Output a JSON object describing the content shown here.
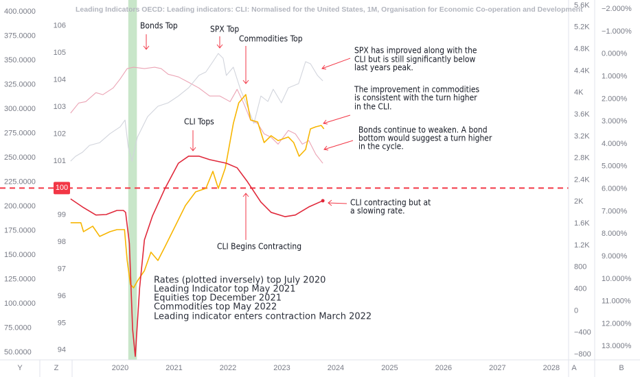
{
  "chart_data": {
    "type": "line",
    "title": "Leading Indicators OECD: Leading indicators: CLI: Normalised for the United States, 1M, Organisation for Economic Co-operation and Development",
    "xlim": [
      2017.77,
      2028.32
    ],
    "xticks": [
      2020,
      2021,
      2022,
      2023,
      2024,
      2025,
      2026,
      2027,
      2028
    ],
    "ylim": [
      42.3,
      412
    ],
    "yticks": [
      {
        "value": 400,
        "label": "400.0000"
      },
      {
        "value": 375,
        "label": "375.0000"
      },
      {
        "value": 350,
        "label": "350.0000"
      },
      {
        "value": 325,
        "label": "325.0000"
      },
      {
        "value": 300,
        "label": "300.0000"
      },
      {
        "value": 275,
        "label": "275.0000"
      },
      {
        "value": 250,
        "label": "250.0000"
      },
      {
        "value": 225,
        "label": "225.0000"
      },
      {
        "value": 200,
        "label": "200.0000"
      },
      {
        "value": 175,
        "label": "175.0000"
      },
      {
        "value": 150,
        "label": "150.0000"
      },
      {
        "value": 125,
        "label": "125.0000"
      },
      {
        "value": 100,
        "label": "100.0000"
      },
      {
        "value": 75,
        "label": "75.0000"
      },
      {
        "value": 50,
        "label": "50.0000"
      }
    ],
    "y3lim": [
      93.64,
      106.96
    ],
    "y3ticks": [
      106,
      105,
      104,
      103,
      102,
      101,
      99,
      98,
      97,
      96,
      95,
      94
    ],
    "y2lim": [
      -900,
      5700
    ],
    "y2ticks": [
      {
        "value": 5600,
        "label": "5.6K"
      },
      {
        "value": 5200,
        "label": "5.2K"
      },
      {
        "value": 4800,
        "label": "4.8K"
      },
      {
        "value": 4400,
        "label": "4.4K"
      },
      {
        "value": 4000,
        "label": "4K"
      },
      {
        "value": 3600,
        "label": "3.6K"
      },
      {
        "value": 3200,
        "label": "3.2K"
      },
      {
        "value": 2800,
        "label": "2.8K"
      },
      {
        "value": 2400,
        "label": "2.4K"
      },
      {
        "value": 2000,
        "label": "2K"
      },
      {
        "value": 1600,
        "label": "1.6K"
      },
      {
        "value": 1200,
        "label": "1.2K"
      },
      800,
      400,
      0,
      {
        "value": -400,
        "label": "−400"
      },
      {
        "value": -800,
        "label": "−800"
      }
    ],
    "y4lim": [
      -2.4,
      13.6
    ],
    "y4_inverted": true,
    "y4ticks": [
      {
        "value": -2,
        "label": "−2.000%"
      },
      {
        "value": -1,
        "label": "−1.000%"
      },
      {
        "value": 0,
        "label": "0.000%"
      },
      {
        "value": 1,
        "label": "1.000%"
      },
      {
        "value": 2,
        "label": "2.000%"
      },
      {
        "value": 3,
        "label": "3.000%"
      },
      {
        "value": 4,
        "label": "4.000%"
      },
      {
        "value": 5,
        "label": "5.000%"
      },
      {
        "value": 6,
        "label": "6.000%"
      },
      {
        "value": 7,
        "label": "7.000%"
      },
      {
        "value": 8,
        "label": "8.000%"
      },
      {
        "value": 9,
        "label": "9.000%"
      },
      {
        "value": 10,
        "label": "10.000%"
      },
      {
        "value": 11,
        "label": "11.000%"
      },
      {
        "value": 12,
        "label": "12.000%"
      },
      {
        "value": 13,
        "label": "13.000%"
      }
    ],
    "grid": false,
    "highlight": [
      2020.15,
      2020.31
    ],
    "highlight_color": "#c8e6c9",
    "reference_line": {
      "value": 100,
      "axis": "y3",
      "color": "#f23645"
    },
    "series": [
      {
        "axis": "y4",
        "color": "#eba3b4",
        "x": [
          2019.08,
          2019.23,
          2019.36,
          2019.55,
          2019.68,
          2019.87,
          2020.0,
          2020.13,
          2020.25,
          2020.45,
          2020.64,
          2020.76,
          2020.89,
          2021.08,
          2021.27,
          2021.46,
          2021.66,
          2021.85,
          2022.04,
          2022.17,
          2022.29,
          2022.42,
          2022.55,
          2022.67,
          2022.8,
          2022.93,
          2023.12,
          2023.25,
          2023.38,
          2023.5,
          2023.63,
          2023.76
        ],
        "values": [
          2.63,
          2.18,
          2.12,
          1.72,
          1.81,
          1.51,
          1.11,
          0.65,
          0.59,
          0.65,
          0.59,
          0.65,
          0.9,
          1.02,
          1.26,
          1.51,
          1.87,
          1.87,
          2.12,
          1.57,
          2.18,
          2.94,
          3.09,
          3.55,
          3.7,
          4.01,
          3.4,
          3.55,
          4.01,
          3.85,
          4.46,
          4.86
        ]
      },
      {
        "axis": "y2",
        "color": "#d1d4dc",
        "x": [
          2019.08,
          2019.17,
          2019.3,
          2019.43,
          2019.62,
          2019.81,
          2020.0,
          2020.09,
          2020.15,
          2020.22,
          2020.32,
          2020.51,
          2020.7,
          2020.89,
          2021.08,
          2021.27,
          2021.46,
          2021.59,
          2021.72,
          2021.82,
          2021.91,
          2021.97,
          2022.1,
          2022.23,
          2022.36,
          2022.48,
          2022.61,
          2022.74,
          2022.84,
          2022.99,
          2023.12,
          2023.31,
          2023.44,
          2023.53,
          2023.66,
          2023.76
        ],
        "values": [
          2744,
          2832,
          2908,
          3034,
          3084,
          3247,
          3373,
          3499,
          2996,
          2744,
          3185,
          3562,
          3751,
          3814,
          3939,
          4090,
          4317,
          4380,
          4568,
          4719,
          4631,
          4317,
          4468,
          4065,
          3751,
          3436,
          3939,
          3839,
          4065,
          3814,
          4090,
          4166,
          4568,
          4531,
          4317,
          4216
        ]
      },
      {
        "axis": "y",
        "color": "#f7b500",
        "x": [
          2019.08,
          2019.27,
          2019.32,
          2019.49,
          2019.62,
          2019.81,
          2019.94,
          2020.08,
          2020.13,
          2020.19,
          2020.25,
          2020.32,
          2020.45,
          2020.57,
          2020.7,
          2020.83,
          2021.02,
          2021.21,
          2021.4,
          2021.59,
          2021.72,
          2021.82,
          2021.95,
          2022.1,
          2022.2,
          2022.33,
          2022.42,
          2022.55,
          2022.67,
          2022.8,
          2022.93,
          2023.12,
          2023.22,
          2023.32,
          2023.44,
          2023.53,
          2023.63,
          2023.73,
          2023.78
        ],
        "values": [
          183.2,
          183.2,
          174.0,
          179.6,
          169.1,
          174.0,
          176.1,
          176.1,
          144.4,
          119.8,
          116.3,
          123.3,
          133.9,
          152.9,
          144.4,
          158.5,
          179.6,
          200.8,
          214.9,
          218.4,
          236.0,
          218.4,
          239.5,
          285.2,
          306.4,
          314.8,
          288.8,
          286.7,
          265.5,
          272.6,
          267.6,
          271.2,
          265.5,
          251.5,
          258.5,
          279.6,
          281.7,
          283.1,
          279.6
        ]
      },
      {
        "axis": "y3",
        "color": "#e0283a",
        "x": [
          2019.08,
          2019.3,
          2019.55,
          2019.74,
          2019.94,
          2020.06,
          2020.1,
          2020.17,
          2020.23,
          2020.28,
          2020.36,
          2020.45,
          2020.6,
          2020.83,
          2021.08,
          2021.27,
          2021.46,
          2021.66,
          2021.97,
          2022.17,
          2022.36,
          2022.61,
          2022.8,
          2023.06,
          2023.25,
          2023.5,
          2023.76
        ],
        "values": [
          99.6,
          99.3,
          99.0,
          99.02,
          99.17,
          99.17,
          99.1,
          97.95,
          94.78,
          93.77,
          96.3,
          98.08,
          98.97,
          99.98,
          100.92,
          101.18,
          101.18,
          101.05,
          100.92,
          100.75,
          100.24,
          99.48,
          99.1,
          98.94,
          99.0,
          99.3,
          99.53
        ]
      }
    ],
    "annotations": {
      "bonds_top": "Bonds Top",
      "spx_top": "SPX Top",
      "commodities_top": "Commodities Top",
      "cli_tops": "CLI Tops",
      "cli_begins": "CLI Begins Contracting",
      "spx_note": [
        "SPX has improved along with the",
        "CLI but is still significantly below",
        "last years peak."
      ],
      "commodities_note": [
        "The improvement in commodities",
        "is consistent with the turn higher",
        "in the CLI."
      ],
      "bonds_note": [
        "Bonds continue to weaken. A bond",
        "bottom would suggest a turn higher",
        "in the cycle."
      ],
      "cli_note": [
        "CLI contracting but at",
        "a slowing rate."
      ],
      "summary": [
        "Rates (plotted inversely) top July 2020",
        "Leading Indicator top May 2021",
        "Equities top December 2021",
        "Commodities top May 2022",
        "Leading indicator enters contraction March 2022"
      ]
    },
    "axis_buttons": [
      "Y",
      "Z",
      "A",
      "B"
    ]
  }
}
